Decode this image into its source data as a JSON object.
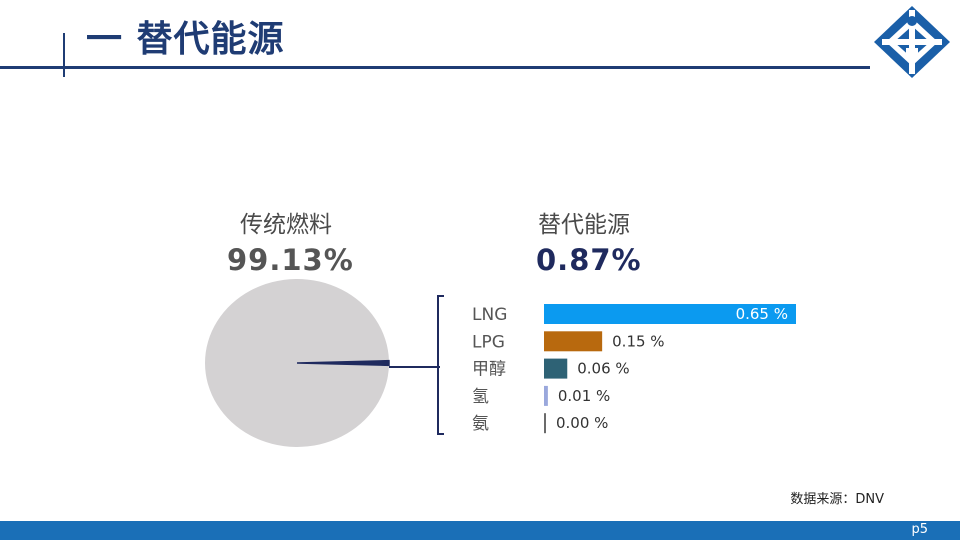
{
  "header": {
    "title": "一 替代能源"
  },
  "chart_data": {
    "type": "pie",
    "slices": [
      {
        "label": "传统燃料",
        "value": 99.13,
        "display": "99.13%",
        "color": "#d4d2d3"
      },
      {
        "label": "替代能源",
        "value": 0.87,
        "display": "0.87%",
        "color": "#1f2a5e"
      }
    ],
    "breakdown": {
      "type": "bar",
      "parent": "替代能源",
      "categories": [
        "LNG",
        "LPG",
        "甲醇",
        "氢",
        "氨"
      ],
      "values": [
        0.65,
        0.15,
        0.06,
        0.01,
        0.0
      ],
      "labels": [
        "0.65 %",
        "0.15 %",
        "0.06 %",
        "0.01 %",
        "0.00 %"
      ],
      "colors": [
        "#0b9af0",
        "#b8690e",
        "#2e6275",
        "#9aa8dc",
        "#6b6b6b"
      ]
    }
  },
  "colors": {
    "brand": "#1f3c74",
    "footer": "#1a6fb7",
    "traditional_pct": "#555555",
    "alternative_pct": "#1f2a5e"
  },
  "source": "数据来源：DNV",
  "footer": {
    "page": "p5"
  },
  "logo": {
    "icon": "institution-logo-icon"
  }
}
